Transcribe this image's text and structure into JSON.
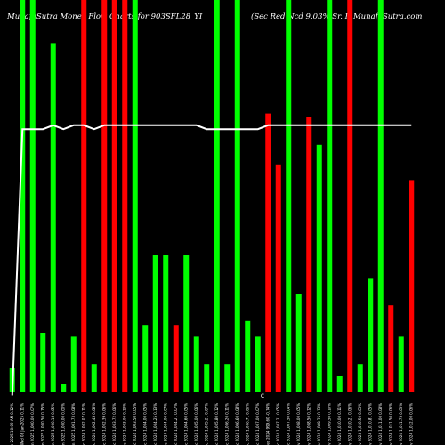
{
  "chart_data": {
    "type": "bar",
    "title_left": "MunafaSutra  Money Flow  Charts for 903SFL28_YI",
    "title_right": "(Sec Red Ncd 9.03% Sr. I)  MunafaSutra.com",
    "ylim": [
      0,
      100
    ],
    "grid": false,
    "legend": "none",
    "bars": [
      {
        "value": 6,
        "color": "green"
      },
      {
        "value": 100,
        "color": "green"
      },
      {
        "value": 100,
        "color": "green"
      },
      {
        "value": 15,
        "color": "green"
      },
      {
        "value": 89,
        "color": "green"
      },
      {
        "value": 2,
        "color": "green"
      },
      {
        "value": 14,
        "color": "green"
      },
      {
        "value": 100,
        "color": "red"
      },
      {
        "value": 7,
        "color": "green"
      },
      {
        "value": 100,
        "color": "red"
      },
      {
        "value": 100,
        "color": "red"
      },
      {
        "value": 100,
        "color": "red"
      },
      {
        "value": 100,
        "color": "green"
      },
      {
        "value": 17,
        "color": "green"
      },
      {
        "value": 35,
        "color": "green"
      },
      {
        "value": 35,
        "color": "green"
      },
      {
        "value": 17,
        "color": "red"
      },
      {
        "value": 35,
        "color": "green"
      },
      {
        "value": 14,
        "color": "green"
      },
      {
        "value": 7,
        "color": "green"
      },
      {
        "value": 100,
        "color": "green"
      },
      {
        "value": 7,
        "color": "green"
      },
      {
        "value": 100,
        "color": "green"
      },
      {
        "value": 18,
        "color": "green"
      },
      {
        "value": 14,
        "color": "green"
      },
      {
        "value": 71,
        "color": "red"
      },
      {
        "value": 58,
        "color": "red"
      },
      {
        "value": 100,
        "color": "green"
      },
      {
        "value": 25,
        "color": "green"
      },
      {
        "value": 70,
        "color": "red"
      },
      {
        "value": 63,
        "color": "green"
      },
      {
        "value": 100,
        "color": "green"
      },
      {
        "value": 4,
        "color": "green"
      },
      {
        "value": 100,
        "color": "red"
      },
      {
        "value": 7,
        "color": "green"
      },
      {
        "value": 29,
        "color": "green"
      },
      {
        "value": 100,
        "color": "green"
      },
      {
        "value": 22,
        "color": "red"
      },
      {
        "value": 14,
        "color": "green"
      },
      {
        "value": 54,
        "color": "red"
      }
    ],
    "line": [
      -1,
      67,
      67,
      67,
      68,
      67,
      68,
      68,
      67,
      68,
      68,
      68,
      68,
      68,
      68,
      68,
      68,
      68,
      68,
      67,
      67,
      67,
      67,
      67,
      67,
      68,
      68,
      68,
      68,
      68,
      68,
      68,
      68,
      68,
      68,
      68,
      68,
      68,
      68,
      68
    ],
    "x_labels": [
      "Thu 09 Jan 2025 10:09 AM 0.12%",
      "Wed 08 Jan 2025 0.11%",
      "Tue 07 Jan 2025 1,000.00 0.07%",
      "Mon 06 Jan 2025 1,000.50 0.15%",
      "Fri 03 Jan 2025 1,000.18 0.05%",
      "Thu 02 Jan 2025 1,000.00 0.00%",
      "Wed 01 Jan 2025 1,001.73 0.08%",
      "Tue 31 Dec 2024 1,002.07 0.11%",
      "Mon 30 Dec 2024 1,002.45 0.08%",
      "Fri 27 Dec 2024 1,002.39 0.06%",
      "Thu 26 Dec 2024 1,003.72 0.06%",
      "Tue 24 Dec 2024 1,003.00 0.13%",
      "Mon 23 Dec 2024 1,003.50 0.05%",
      "Fri 20 Dec 2024 1,004.00 0.05%",
      "Thu 19 Dec 2024 1,004.25 0.13%",
      "Wed 18 Dec 2024 1,004.00 0.07%",
      "Tue 17 Dec 2024 1,004.21 0.07%",
      "Mon 16 Dec 2024 1,004.60 0.05%",
      "Fri 13 Dec 2024 1,005.00 0.06%",
      "Thu 12 Dec 2024 1,005.21 0.07%",
      "Wed 11 Dec 2024 1,005.80 0.12%",
      "Tue 10 Dec 2024 1,006.20 0.11%",
      "Mon 09 Dec 2024 1,006.60 0.08%",
      "Fri 06 Dec 2024 1,006.71 0.06%",
      "Thu 05 Dec 2024 1,007.00 0.07%",
      "Wed 04 Dec 2024 999.60 -0.74%",
      "Tue 03 Dec 2024 1,007.21 0.05%",
      "Mon 02 Dec 2024 1,007.50 0.04%",
      "Fri 29 Nov 2024 1,008.00 0.05%",
      "Thu 28 Nov 2024 1,008.50 0.12%",
      "Wed 27 Nov 2024 1,009.25 0.13%",
      "Tue 26 Nov 2024 1,009.50 0.10%",
      "Mon 25 Nov 2024 1,010.00 0.11%",
      "Fri 22 Nov 2024 1,010.21 0.06%",
      "Thu 21 Nov 2024 1,010.50 0.03%",
      "Wed 20 Nov 2024 1,010.81 0.05%",
      "Tue 19 Nov 2024 1,011.00 0.08%",
      "Mon 18 Nov 2024 1,011.50 0.06%",
      "Fri 15 Nov 2024 1,011.75 0.03%",
      "Thu 14 Nov 2024 1,012.00 0.06%"
    ],
    "annotation": "C",
    "colors": {
      "green": "#00ff00",
      "red": "#ff0000",
      "line": "#ffffff",
      "background": "#000000"
    }
  }
}
